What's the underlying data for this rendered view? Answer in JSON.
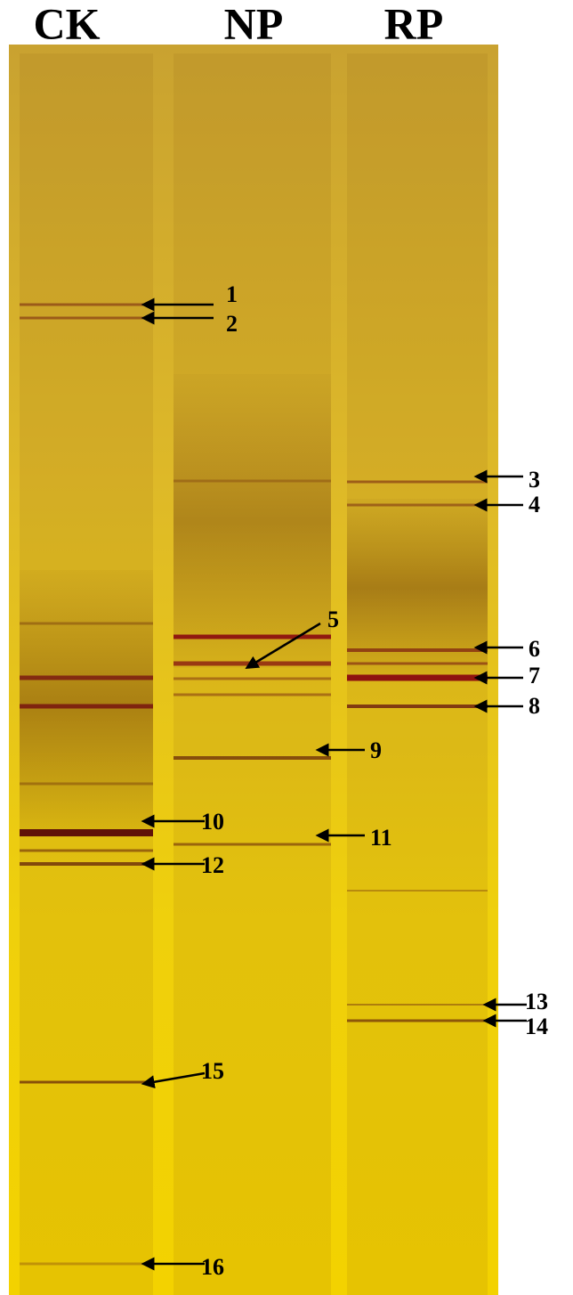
{
  "lanes": [
    "CK",
    "NP",
    "RP"
  ],
  "markers": [
    "1",
    "2",
    "3",
    "4",
    "5",
    "6",
    "7",
    "8",
    "9",
    "10",
    "11",
    "12",
    "13",
    "14",
    "15",
    "16"
  ]
}
